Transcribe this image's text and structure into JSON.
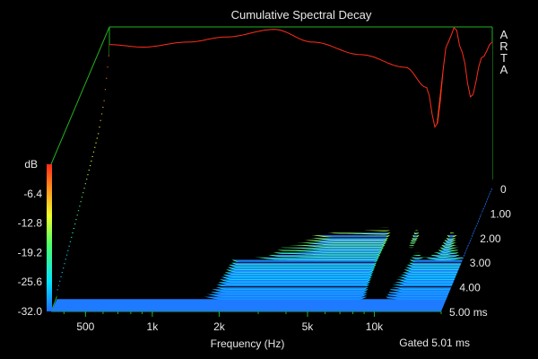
{
  "chart_data": {
    "type": "waterfall",
    "title": "Cumulative Spectral Decay",
    "xlabel": "Frequency (Hz)",
    "ylabel": "dB",
    "zlabel": "ms",
    "watermark": "ARTA",
    "gate_label": "Gated 5.01 ms",
    "x_scale": "log",
    "xlim": [
      350,
      20000
    ],
    "x_ticks": [
      500,
      1000,
      2000,
      5000,
      10000
    ],
    "x_tick_labels": [
      "500",
      "1k",
      "2k",
      "5k",
      "10k"
    ],
    "ylim": [
      -32.0,
      0
    ],
    "y_ticks": [
      -6.4,
      -12.8,
      -19.2,
      -25.6,
      -32.0
    ],
    "y_tick_labels": [
      "-6.4",
      "-12.8",
      "-19.2",
      "-25.6",
      "-32.0"
    ],
    "z_ticks": [
      0,
      1.0,
      2.0,
      3.0,
      4.0,
      5.0
    ],
    "z_tick_labels": [
      "0",
      "1.00",
      "2.00",
      "3.00",
      "4.00",
      "5.00 ms"
    ],
    "series": [
      {
        "t": 0.0,
        "points": [
          [
            350,
            -3.5
          ],
          [
            500,
            -4.0
          ],
          [
            800,
            -3.0
          ],
          [
            1200,
            -2.0
          ],
          [
            2000,
            -0.5
          ],
          [
            3000,
            -3.0
          ],
          [
            5000,
            -5.5
          ],
          [
            8000,
            -8.0
          ],
          [
            10000,
            -12.0
          ],
          [
            11000,
            -20.0
          ],
          [
            12500,
            -3.0
          ],
          [
            13500,
            0.0
          ],
          [
            14500,
            -5.0
          ],
          [
            16000,
            -14.0
          ],
          [
            18000,
            -6.0
          ],
          [
            20000,
            -3.0
          ]
        ]
      },
      {
        "t": 0.5,
        "points": [
          [
            350,
            -12.0
          ],
          [
            500,
            -10.0
          ],
          [
            800,
            -8.0
          ],
          [
            1200,
            -6.5
          ],
          [
            2000,
            -6.0
          ],
          [
            3000,
            -9.0
          ],
          [
            5000,
            -12.0
          ],
          [
            8000,
            -18.0
          ],
          [
            10000,
            -22.0
          ],
          [
            11000,
            -26.0
          ],
          [
            12500,
            -10.0
          ],
          [
            13500,
            -5.0
          ],
          [
            14500,
            -12.0
          ],
          [
            16000,
            -20.0
          ],
          [
            18000,
            -12.0
          ],
          [
            20000,
            -8.0
          ]
        ]
      },
      {
        "t": 1.0,
        "points": [
          [
            350,
            -16.0
          ],
          [
            500,
            -13.0
          ],
          [
            800,
            -12.0
          ],
          [
            1200,
            -12.0
          ],
          [
            2000,
            -15.0
          ],
          [
            3000,
            -22.0
          ],
          [
            5000,
            -28.0
          ],
          [
            8000,
            -30.0
          ],
          [
            10000,
            -31.0
          ],
          [
            11000,
            -30.0
          ],
          [
            12500,
            -20.0
          ],
          [
            13500,
            -16.0
          ],
          [
            14500,
            -22.0
          ],
          [
            16000,
            -28.0
          ],
          [
            18000,
            -22.0
          ],
          [
            20000,
            -18.0
          ]
        ]
      },
      {
        "t": 2.0,
        "points": [
          [
            350,
            -20.0
          ],
          [
            500,
            -18.0
          ],
          [
            800,
            -16.0
          ],
          [
            1200,
            -18.0
          ],
          [
            2000,
            -24.0
          ],
          [
            3000,
            -31.0
          ],
          [
            5000,
            -32.0
          ],
          [
            8000,
            -32.0
          ],
          [
            10000,
            -28.0
          ],
          [
            11000,
            -32.0
          ],
          [
            12500,
            -30.0
          ],
          [
            13500,
            -26.0
          ],
          [
            14500,
            -30.0
          ],
          [
            16000,
            -32.0
          ],
          [
            18000,
            -31.0
          ],
          [
            20000,
            -28.0
          ]
        ]
      },
      {
        "t": 3.0,
        "points": [
          [
            350,
            -24.0
          ],
          [
            500,
            -23.0
          ],
          [
            800,
            -22.0
          ],
          [
            1200,
            -25.0
          ],
          [
            2000,
            -32.0
          ],
          [
            3000,
            -32.0
          ],
          [
            5000,
            -32.0
          ],
          [
            8000,
            -32.0
          ],
          [
            10000,
            -25.0
          ],
          [
            11000,
            -31.0
          ],
          [
            12500,
            -32.0
          ],
          [
            13500,
            -32.0
          ],
          [
            14500,
            -32.0
          ],
          [
            16000,
            -32.0
          ],
          [
            18000,
            -32.0
          ],
          [
            20000,
            -32.0
          ]
        ]
      },
      {
        "t": 5.0,
        "points": [
          [
            350,
            -32.0
          ],
          [
            500,
            -32.0
          ],
          [
            800,
            -32.0
          ],
          [
            1200,
            -32.0
          ],
          [
            2000,
            -32.0
          ],
          [
            3000,
            -32.0
          ],
          [
            5000,
            -32.0
          ],
          [
            8000,
            -32.0
          ],
          [
            10000,
            -32.0
          ],
          [
            11000,
            -32.0
          ],
          [
            12500,
            -32.0
          ],
          [
            13500,
            -32.0
          ],
          [
            14500,
            -32.0
          ],
          [
            16000,
            -32.0
          ],
          [
            18000,
            -32.0
          ],
          [
            20000,
            -32.0
          ]
        ]
      }
    ],
    "colormap": [
      "#1e6cff",
      "#00e5ff",
      "#4cff6a",
      "#f0ff2a",
      "#ff9a1a",
      "#ff2a1a"
    ],
    "floor_color": "#1e7bff",
    "grid": false
  }
}
